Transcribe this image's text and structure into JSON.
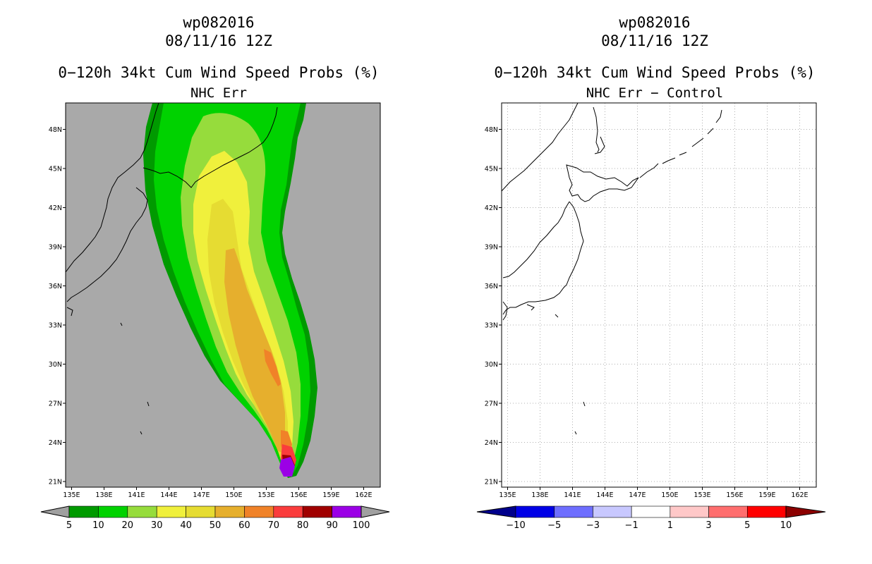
{
  "panels": [
    {
      "storm": "wp082016",
      "date": "08/11/16 12Z",
      "title": "0−120h 34kt Cum Wind Speed Probs (%)",
      "subtitle": "NHC Err"
    },
    {
      "storm": "wp082016",
      "date": "08/11/16 12Z",
      "title": "0−120h 34kt Cum Wind Speed Probs (%)",
      "subtitle": "NHC Err − Control"
    }
  ],
  "lon_ticks": [
    "135E",
    "138E",
    "141E",
    "144E",
    "147E",
    "150E",
    "153E",
    "156E",
    "159E",
    "162E"
  ],
  "lat_ticks": [
    "21N",
    "24N",
    "27N",
    "30N",
    "33N",
    "36N",
    "39N",
    "42N",
    "45N",
    "48N"
  ],
  "colorbar_prob": {
    "labels": [
      "5",
      "10",
      "20",
      "30",
      "40",
      "50",
      "60",
      "70",
      "80",
      "90",
      "100"
    ],
    "colors": [
      "#009a00",
      "#00d200",
      "#96dc3c",
      "#f0f03c",
      "#e6dc32",
      "#e6af2d",
      "#f08228",
      "#fa3c3c",
      "#a00000",
      "#9b00e6"
    ],
    "under_color": "#a0a0a0",
    "over_color": "#a0a0a0"
  },
  "colorbar_diff": {
    "labels": [
      "−10",
      "−5",
      "−3",
      "−1",
      "1",
      "3",
      "5",
      "10"
    ],
    "colors": [
      "#0000e6",
      "#6e6eff",
      "#c8c8ff",
      "#ffffff",
      "#ffc8c8",
      "#ff6e6e",
      "#ff0000"
    ],
    "under_color": "#00008c",
    "over_color": "#8c0000"
  }
}
